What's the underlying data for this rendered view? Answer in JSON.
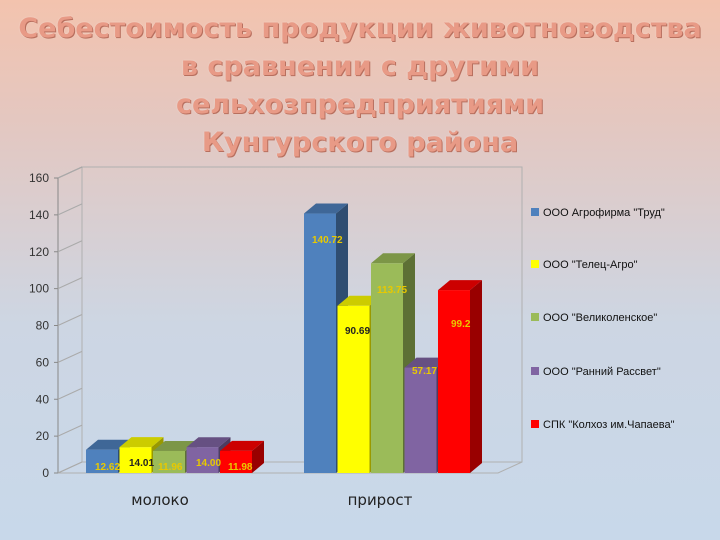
{
  "header": {
    "title_lines": [
      "Себестоимость продукции животноводства",
      "в сравнении с другими сельхозпредприятиями",
      "Кунгурского района"
    ]
  },
  "chart_data": {
    "type": "bar",
    "title": "Себестоимость продукции животноводства в сравнении с другими сельхозпредприятиями Кунгурского района",
    "categories": [
      "молоко",
      "прирост"
    ],
    "ylim": [
      0,
      160
    ],
    "yticks": [
      0,
      20,
      40,
      60,
      80,
      100,
      120,
      140,
      160
    ],
    "grid": false,
    "legend_position": "right",
    "series": [
      {
        "name": "ООО Агрофирма \"Труд\"",
        "color": "#4f81bd",
        "label_color": "#e8c900",
        "values": [
          12.62,
          140.72
        ],
        "labels": [
          "12.62",
          "140.72"
        ]
      },
      {
        "name": "ООО \"Телец-Агро\"",
        "color": "#ffff00",
        "label_color": "#222222",
        "values": [
          14.01,
          90.69
        ],
        "labels": [
          "14.01",
          "90.69"
        ]
      },
      {
        "name": "ООО \"Великоленское\"",
        "color": "#9bbb59",
        "label_color": "#e8c900",
        "values": [
          11.96,
          113.75
        ],
        "labels": [
          "11.96",
          "113.75"
        ]
      },
      {
        "name": "ООО \"Ранний Рассвет\"",
        "color": "#8064a2",
        "label_color": "#e8c900",
        "values": [
          14.0,
          57.17
        ],
        "labels": [
          "14.00",
          "57.17"
        ]
      },
      {
        "name": "СПК \"Колхоз им.Чапаева\"",
        "color": "#ff0000",
        "label_color": "#e8c900",
        "values": [
          11.98,
          99.2
        ],
        "labels": [
          "11.98",
          "99.2"
        ]
      }
    ]
  }
}
